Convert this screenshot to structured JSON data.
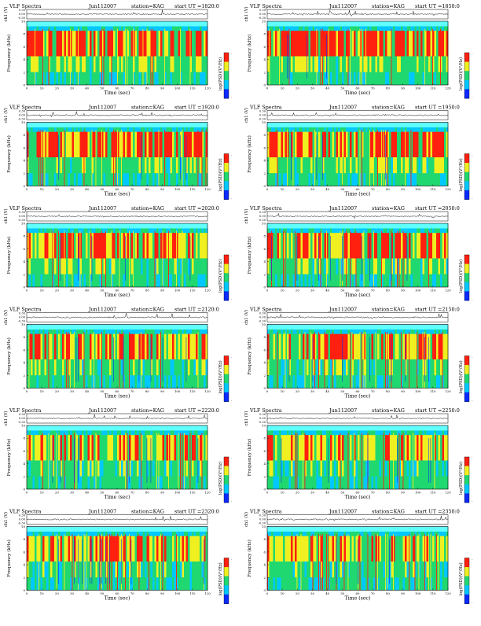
{
  "shared": {
    "prefix": "VLF Spectra",
    "date": "Jun112007",
    "station": "station=KAG",
    "start_label": "start UT =",
    "ylabel_top": "ch1 (V)",
    "ylabel_main": "Frequency (kHz)",
    "xlabel": "Time (sec)",
    "cbar_label": "log(PSD)(V²/Hz)",
    "top_ticks": [
      "0.30",
      "0.00",
      "-0.30"
    ],
    "x_ticks": [
      "0",
      "10",
      "20",
      "30",
      "40",
      "50",
      "60",
      "70",
      "80",
      "90",
      "100",
      "110",
      "120"
    ],
    "y_ticks": [
      "0",
      "2",
      "4",
      "6",
      "8",
      "10"
    ],
    "cbar_ticks": [
      "-",
      "-"
    ],
    "colors": {
      "low": "#0a2aff",
      "mid_low": "#00c8ff",
      "mid": "#20d870",
      "mid_high": "#f0f020",
      "high": "#ff2010",
      "band_top": "#60ffff"
    }
  },
  "chart_data": [
    {
      "type": "heatmap",
      "start_ut": "1820:0",
      "xlim": [
        0,
        120
      ],
      "ylim": [
        0,
        10
      ],
      "activity": "high",
      "title": "VLF Spectra Jun112007 station=KAG start UT =1820:0"
    },
    {
      "type": "heatmap",
      "start_ut": "1850:0",
      "xlim": [
        0,
        120
      ],
      "ylim": [
        0,
        10
      ],
      "activity": "high",
      "title": "VLF Spectra Jun112007 station=KAG start UT =1850:0"
    },
    {
      "type": "heatmap",
      "start_ut": "1920:0",
      "xlim": [
        0,
        120
      ],
      "ylim": [
        0,
        10
      ],
      "activity": "high",
      "title": "VLF Spectra Jun112007 station=KAG start UT =1920:0"
    },
    {
      "type": "heatmap",
      "start_ut": "1950:0",
      "xlim": [
        0,
        120
      ],
      "ylim": [
        0,
        10
      ],
      "activity": "high",
      "title": "VLF Spectra Jun112007 station=KAG start UT =1950:0"
    },
    {
      "type": "heatmap",
      "start_ut": "2020:0",
      "xlim": [
        0,
        120
      ],
      "ylim": [
        0,
        10
      ],
      "activity": "medium",
      "title": "VLF Spectra Jun112007 station=KAG start UT =2020:0"
    },
    {
      "type": "heatmap",
      "start_ut": "2050:0",
      "xlim": [
        0,
        120
      ],
      "ylim": [
        0,
        10
      ],
      "activity": "medium",
      "title": "VLF Spectra Jun112007 station=KAG start UT =2050:0"
    },
    {
      "type": "heatmap",
      "start_ut": "2120:0",
      "xlim": [
        0,
        120
      ],
      "ylim": [
        0,
        10
      ],
      "activity": "medium",
      "title": "VLF Spectra Jun112007 station=KAG start UT =2120:0"
    },
    {
      "type": "heatmap",
      "start_ut": "2150:0",
      "xlim": [
        0,
        120
      ],
      "ylim": [
        0,
        10
      ],
      "activity": "medium",
      "title": "VLF Spectra Jun112007 station=KAG start UT =2150:0"
    },
    {
      "type": "heatmap",
      "start_ut": "2220:0",
      "xlim": [
        0,
        120
      ],
      "ylim": [
        0,
        10
      ],
      "activity": "low",
      "title": "VLF Spectra Jun112007 station=KAG start UT =2220:0"
    },
    {
      "type": "heatmap",
      "start_ut": "2250:0",
      "xlim": [
        0,
        120
      ],
      "ylim": [
        0,
        10
      ],
      "activity": "low",
      "title": "VLF Spectra Jun112007 station=KAG start UT =2250:0"
    },
    {
      "type": "heatmap",
      "start_ut": "2320:0",
      "xlim": [
        0,
        120
      ],
      "ylim": [
        0,
        10
      ],
      "activity": "low",
      "title": "VLF Spectra Jun112007 station=KAG start UT =2320:0"
    },
    {
      "type": "heatmap",
      "start_ut": "2350:0",
      "xlim": [
        0,
        120
      ],
      "ylim": [
        0,
        10
      ],
      "activity": "low",
      "title": "VLF Spectra Jun112007 station=KAG start UT =2350:0"
    }
  ]
}
